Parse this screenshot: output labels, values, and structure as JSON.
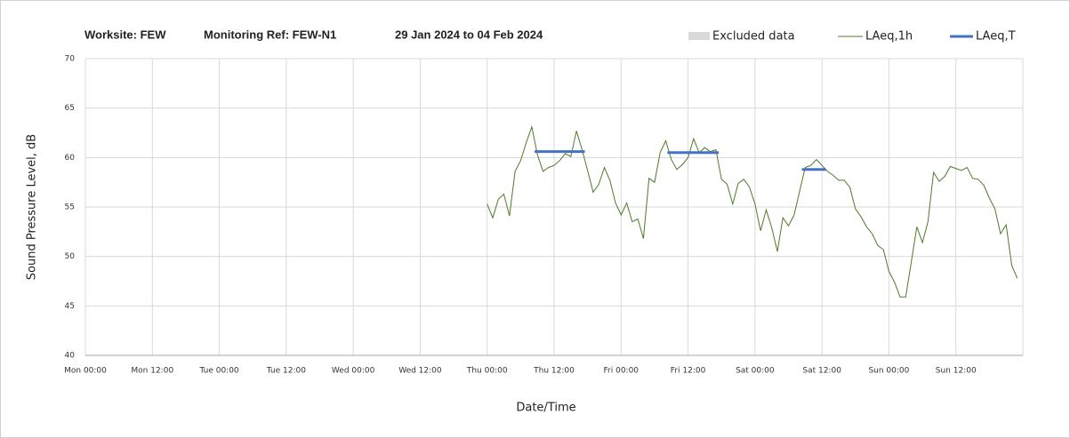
{
  "chart_data": {
    "type": "line",
    "title": [
      "Worksite: FEW",
      "Monitoring Ref: FEW-N1",
      "29 Jan 2024 to 04 Feb 2024"
    ],
    "xlabel": "Date/Time",
    "ylabel": "Sound Pressure Level, dB",
    "xlim": [
      0,
      168
    ],
    "xticks": [
      {
        "value": 0,
        "label": "Mon 00:00"
      },
      {
        "value": 12,
        "label": "Mon 12:00"
      },
      {
        "value": 24,
        "label": "Tue 00:00"
      },
      {
        "value": 36,
        "label": "Tue 12:00"
      },
      {
        "value": 48,
        "label": "Wed 00:00"
      },
      {
        "value": 60,
        "label": "Wed 12:00"
      },
      {
        "value": 72,
        "label": "Thu 00:00"
      },
      {
        "value": 84,
        "label": "Thu 12:00"
      },
      {
        "value": 96,
        "label": "Fri 00:00"
      },
      {
        "value": 108,
        "label": "Fri 12:00"
      },
      {
        "value": 120,
        "label": "Sat 00:00"
      },
      {
        "value": 132,
        "label": "Sat 12:00"
      },
      {
        "value": 144,
        "label": "Sun 00:00"
      },
      {
        "value": 156,
        "label": "Sun 12:00"
      }
    ],
    "ylim": [
      40,
      70
    ],
    "yticks": [
      40,
      45,
      50,
      55,
      60,
      65,
      70
    ],
    "grid": true,
    "excluded": {
      "name": "Excluded data",
      "color": "#d9d9d9"
    },
    "series": [
      {
        "name": "LAeq,1h",
        "color": "#4f7a28",
        "x": [
          72,
          73,
          74,
          75,
          76,
          77,
          78,
          79,
          80,
          81,
          82,
          83,
          84,
          85,
          86,
          87,
          88,
          89,
          90,
          91,
          92,
          93,
          94,
          95,
          96,
          97,
          98,
          99,
          100,
          101,
          102,
          103,
          104,
          105,
          106,
          107,
          108,
          109,
          110,
          111,
          112,
          113,
          114,
          115,
          116,
          117,
          118,
          119,
          120,
          121,
          122,
          123,
          124,
          125,
          126,
          127,
          128,
          129,
          130,
          131,
          132,
          133,
          134,
          135,
          136,
          137,
          138,
          139,
          140,
          141,
          142,
          143,
          144,
          145,
          146,
          147,
          148,
          149,
          150,
          151,
          152,
          153,
          154,
          155,
          156,
          157,
          158,
          159,
          160,
          161,
          162,
          163,
          164,
          165,
          166,
          167
        ],
        "values": [
          55.3,
          53.9,
          55.8,
          56.3,
          54.1,
          58.6,
          59.7,
          61.5,
          63.1,
          60.3,
          58.6,
          59.0,
          59.2,
          59.7,
          60.4,
          60.1,
          62.7,
          60.8,
          58.7,
          56.5,
          57.3,
          59.0,
          57.7,
          55.4,
          54.2,
          55.4,
          53.5,
          53.8,
          51.8,
          57.9,
          57.5,
          60.5,
          61.7,
          59.8,
          58.8,
          59.3,
          60.0,
          61.9,
          60.5,
          61.0,
          60.6,
          60.8,
          57.8,
          57.3,
          55.3,
          57.4,
          57.8,
          57.0,
          55.3,
          52.6,
          54.7,
          52.9,
          50.5,
          53.9,
          53.1,
          54.2,
          56.6,
          59.0,
          59.2,
          59.8,
          59.2,
          58.6,
          58.2,
          57.7,
          57.7,
          57.0,
          54.8,
          54.0,
          53.0,
          52.3,
          51.1,
          50.7,
          48.5,
          47.4,
          45.9,
          45.9,
          49.4,
          53.0,
          51.4,
          53.5,
          58.5,
          57.6,
          58.1,
          59.1,
          58.9,
          58.7,
          59.0,
          57.9,
          57.8,
          57.2,
          55.9,
          54.8,
          52.3,
          53.2,
          49.1,
          47.8
        ]
      },
      {
        "name": "LAeq,T",
        "color": "#4472c4",
        "segments": [
          {
            "x": [
              80.5,
              89.5
            ],
            "value": 60.6
          },
          {
            "x": [
              104.3,
              113.5
            ],
            "value": 60.5
          },
          {
            "x": [
              128.4,
              132.7
            ],
            "value": 58.8
          }
        ]
      }
    ]
  }
}
